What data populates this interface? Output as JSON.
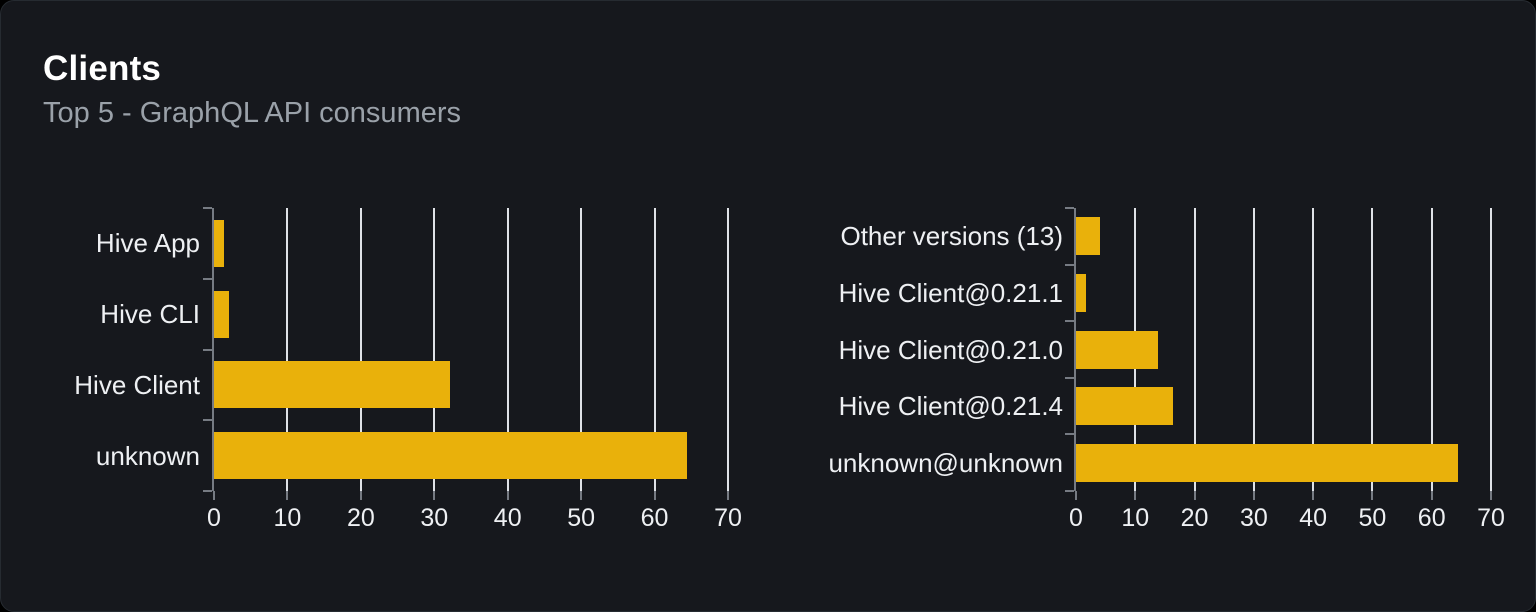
{
  "card": {
    "title": "Clients",
    "subtitle": "Top 5 - GraphQL API consumers"
  },
  "colors": {
    "bar": "#e9b10b",
    "card_bg": "#16181d",
    "page_bg": "#000000",
    "grid": "#dfe2e7",
    "axis": "#767b83",
    "label": "#eef0f3",
    "subtitle": "#9aa1a9",
    "title": "#ffffff"
  },
  "chart_data": [
    {
      "type": "bar",
      "orientation": "horizontal",
      "name": "clients-by-name",
      "categories": [
        "Hive App",
        "Hive CLI",
        "Hive Client",
        "unknown"
      ],
      "values": [
        1.4,
        2.0,
        32.2,
        64.4
      ],
      "xlim": [
        0,
        70
      ],
      "xticks": [
        0,
        10,
        20,
        30,
        40,
        50,
        60,
        70
      ],
      "grid": true,
      "legend": "none",
      "title": ""
    },
    {
      "type": "bar",
      "orientation": "horizontal",
      "name": "clients-by-version",
      "categories": [
        "Other versions (13)",
        "Hive Client@0.21.1",
        "Hive Client@0.21.0",
        "Hive Client@0.21.4",
        "unknown@unknown"
      ],
      "values": [
        4.1,
        1.7,
        13.8,
        16.4,
        64.4
      ],
      "xlim": [
        0,
        70
      ],
      "xticks": [
        0,
        10,
        20,
        30,
        40,
        50,
        60,
        70
      ],
      "grid": true,
      "legend": "none",
      "title": ""
    }
  ]
}
